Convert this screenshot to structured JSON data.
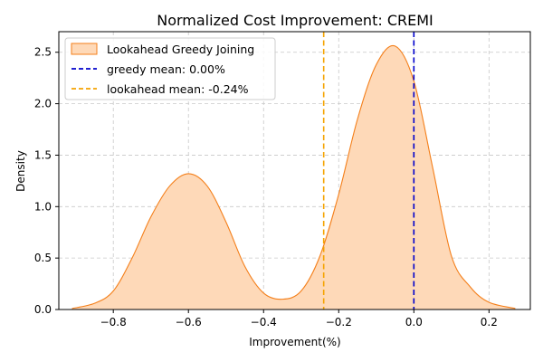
{
  "chart_data": {
    "type": "area",
    "title": "Normalized Cost Improvement: CREMI",
    "xlabel": "Improvement(%)",
    "ylabel": "Density",
    "xlim": [
      -0.945,
      0.31
    ],
    "ylim": [
      0,
      2.7
    ],
    "x_ticks": [
      -0.8,
      -0.6,
      -0.4,
      -0.2,
      0.0,
      0.2
    ],
    "x_tick_labels": [
      "−0.8",
      "−0.6",
      "−0.4",
      "−0.2",
      "0.0",
      "0.2"
    ],
    "y_ticks": [
      0.0,
      0.5,
      1.0,
      1.5,
      2.0,
      2.5
    ],
    "y_tick_labels": [
      "0.0",
      "0.5",
      "1.0",
      "1.5",
      "2.0",
      "2.5"
    ],
    "grid": true,
    "legend_position": "top-left",
    "series": [
      {
        "name": "Lookahead Greedy Joining",
        "kind": "kde-area",
        "line_color": "#f47f1a",
        "fill_color": "#fed9b8",
        "x": [
          -0.91,
          -0.85,
          -0.8,
          -0.75,
          -0.7,
          -0.65,
          -0.6,
          -0.55,
          -0.5,
          -0.45,
          -0.4,
          -0.35,
          -0.3,
          -0.25,
          -0.2,
          -0.15,
          -0.1,
          -0.05,
          0.0,
          0.05,
          0.1,
          0.15,
          0.2,
          0.27
        ],
        "y": [
          0.01,
          0.06,
          0.18,
          0.5,
          0.9,
          1.2,
          1.32,
          1.2,
          0.85,
          0.42,
          0.16,
          0.1,
          0.18,
          0.52,
          1.12,
          1.85,
          2.38,
          2.56,
          2.22,
          1.38,
          0.52,
          0.22,
          0.07,
          0.01
        ]
      }
    ],
    "vlines": [
      {
        "name": "greedy mean: 0.00%",
        "x": 0.0,
        "color": "#0000cc",
        "style": "dashed"
      },
      {
        "name": "lookahead mean: -0.24%",
        "x": -0.24,
        "color": "#f5a300",
        "style": "dashed"
      }
    ]
  }
}
